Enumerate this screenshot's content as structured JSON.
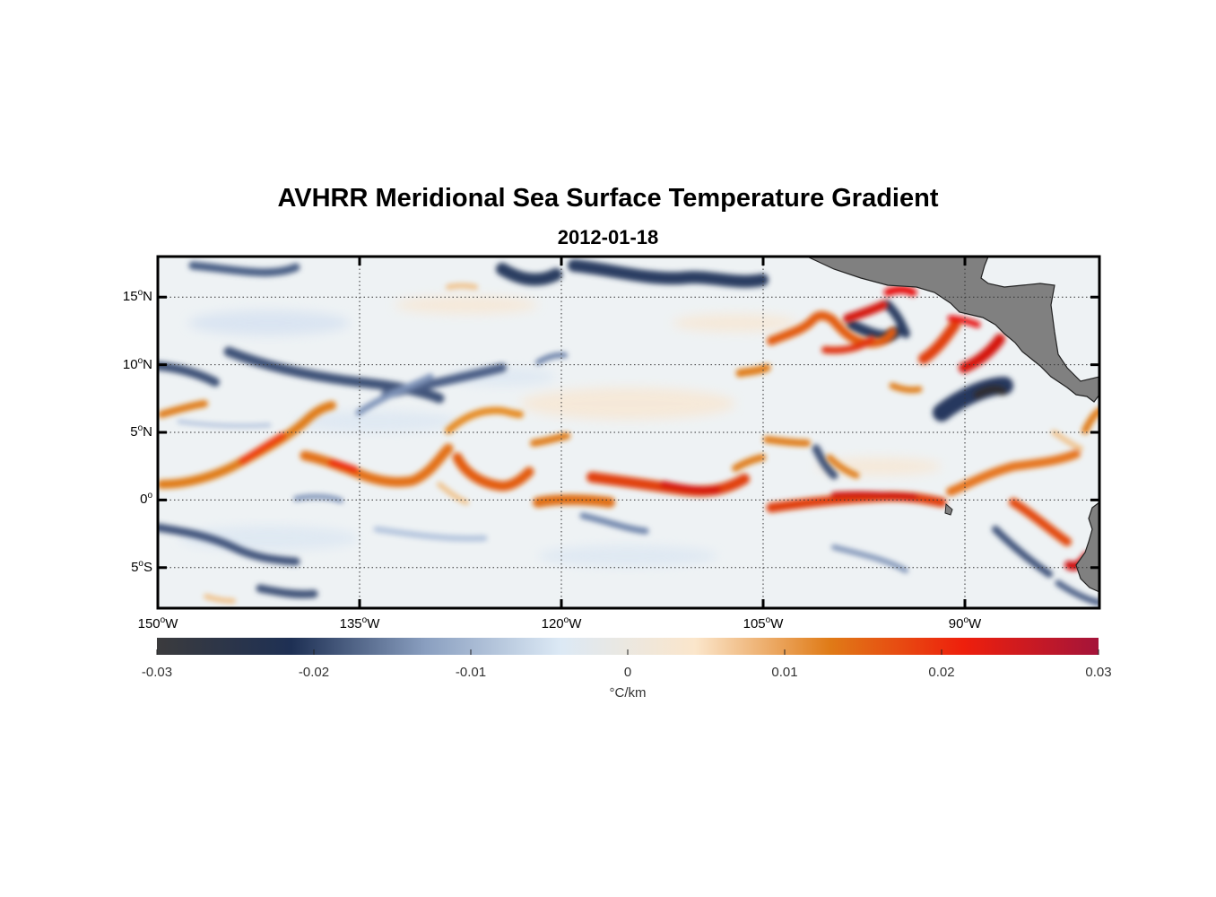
{
  "title": "AVHRR Meridional Sea Surface Temperature Gradient",
  "subtitle": "2012-01-18",
  "map": {
    "lat_labels": [
      {
        "deg": "15",
        "hemi": "N",
        "lat": 15
      },
      {
        "deg": "10",
        "hemi": "N",
        "lat": 10
      },
      {
        "deg": "5",
        "hemi": "N",
        "lat": 5
      },
      {
        "deg": "0",
        "hemi": "",
        "lat": 0
      },
      {
        "deg": "5",
        "hemi": "S",
        "lat": -5
      }
    ],
    "lon_labels": [
      {
        "deg": "150",
        "hemi": "W",
        "lon": -150
      },
      {
        "deg": "135",
        "hemi": "W",
        "lon": -135
      },
      {
        "deg": "120",
        "hemi": "W",
        "lon": -120
      },
      {
        "deg": "105",
        "hemi": "W",
        "lon": -105
      },
      {
        "deg": "90",
        "hemi": "W",
        "lon": -90
      }
    ],
    "lon_range": [
      -150,
      -80
    ],
    "lat_range": [
      -8,
      18
    ],
    "grid": true,
    "land_color": "#808080"
  },
  "colorbar": {
    "ticks": [
      "-0.03",
      "-0.02",
      "-0.01",
      "0",
      "0.01",
      "0.02",
      "0.03"
    ],
    "unit": "°C/km",
    "range": [
      -0.03,
      0.03
    ],
    "stops": [
      "#3b3b3d",
      "#1e3054",
      "#8a9fc0",
      "#dce9f5",
      "#fbe6cb",
      "#e07b17",
      "#ee1f0c",
      "#a4143a"
    ]
  }
}
